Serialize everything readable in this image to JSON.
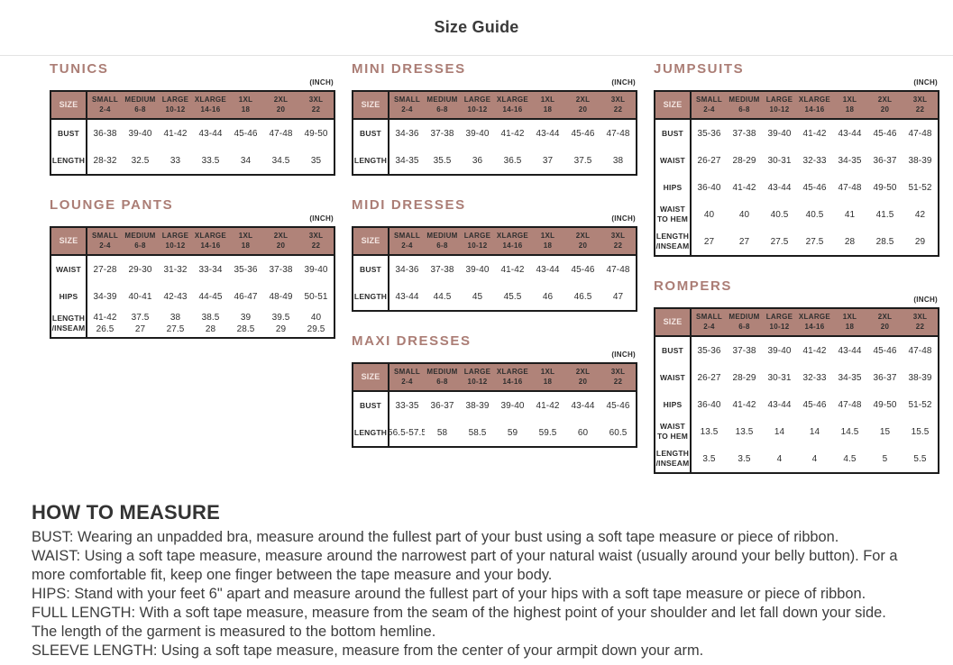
{
  "header": {
    "title": "Size Guide"
  },
  "size_label": "SIZE",
  "unit_label": "(INCH)",
  "colors": {
    "accent": "#ab7d75",
    "table_header_bg": "#b08379",
    "table_header_text": "#f4e6e2",
    "table_border": "#1c1c1c",
    "text": "#333333"
  },
  "size_columns": [
    {
      "name": "SMALL",
      "range": "2-4"
    },
    {
      "name": "MEDIUM",
      "range": "6-8"
    },
    {
      "name": "LARGE",
      "range": "10-12"
    },
    {
      "name": "XLARGE",
      "range": "14-16"
    },
    {
      "name": "1XL",
      "range": "18"
    },
    {
      "name": "2XL",
      "range": "20"
    },
    {
      "name": "3XL",
      "range": "22"
    }
  ],
  "columns": [
    {
      "tables": [
        {
          "title": "TUNICS",
          "rows": [
            {
              "label": "BUST",
              "values": [
                "36-38",
                "39-40",
                "41-42",
                "43-44",
                "45-46",
                "47-48",
                "49-50"
              ]
            },
            {
              "label": "LENGTH",
              "values": [
                "28-32",
                "32.5",
                "33",
                "33.5",
                "34",
                "34.5",
                "35"
              ]
            }
          ]
        },
        {
          "title": "LOUNGE PANTS",
          "rows": [
            {
              "label": "WAIST",
              "values": [
                "27-28",
                "29-30",
                "31-32",
                "33-34",
                "35-36",
                "37-38",
                "39-40"
              ]
            },
            {
              "label": "HIPS",
              "values": [
                "34-39",
                "40-41",
                "42-43",
                "44-45",
                "46-47",
                "48-49",
                "50-51"
              ]
            },
            {
              "label": "LENGTH\n/INSEAM",
              "values": [
                "41-42\n26.5",
                "37.5\n27",
                "38\n27.5",
                "38.5\n28",
                "39\n28.5",
                "39.5\n29",
                "40\n29.5"
              ]
            }
          ]
        }
      ]
    },
    {
      "tables": [
        {
          "title": "MINI DRESSES",
          "rows": [
            {
              "label": "BUST",
              "values": [
                "34-36",
                "37-38",
                "39-40",
                "41-42",
                "43-44",
                "45-46",
                "47-48"
              ]
            },
            {
              "label": "LENGTH",
              "values": [
                "34-35",
                "35.5",
                "36",
                "36.5",
                "37",
                "37.5",
                "38"
              ]
            }
          ]
        },
        {
          "title": "MIDI DRESSES",
          "rows": [
            {
              "label": "BUST",
              "values": [
                "34-36",
                "37-38",
                "39-40",
                "41-42",
                "43-44",
                "45-46",
                "47-48"
              ]
            },
            {
              "label": "LENGTH",
              "values": [
                "43-44",
                "44.5",
                "45",
                "45.5",
                "46",
                "46.5",
                "47"
              ]
            }
          ]
        },
        {
          "title": "MAXI DRESSES",
          "rows": [
            {
              "label": "BUST",
              "values": [
                "33-35",
                "36-37",
                "38-39",
                "39-40",
                "41-42",
                "43-44",
                "45-46"
              ]
            },
            {
              "label": "LENGTH",
              "values": [
                "56.5-57.5",
                "58",
                "58.5",
                "59",
                "59.5",
                "60",
                "60.5"
              ]
            }
          ]
        }
      ]
    },
    {
      "tables": [
        {
          "title": "JUMPSUITS",
          "rows": [
            {
              "label": "BUST",
              "values": [
                "35-36",
                "37-38",
                "39-40",
                "41-42",
                "43-44",
                "45-46",
                "47-48"
              ]
            },
            {
              "label": "WAIST",
              "values": [
                "26-27",
                "28-29",
                "30-31",
                "32-33",
                "34-35",
                "36-37",
                "38-39"
              ]
            },
            {
              "label": "HIPS",
              "values": [
                "36-40",
                "41-42",
                "43-44",
                "45-46",
                "47-48",
                "49-50",
                "51-52"
              ]
            },
            {
              "label": "WAIST\nTO HEM",
              "values": [
                "40",
                "40",
                "40.5",
                "40.5",
                "41",
                "41.5",
                "42"
              ]
            },
            {
              "label": "LENGTH\n/INSEAM",
              "values": [
                "27",
                "27",
                "27.5",
                "27.5",
                "28",
                "28.5",
                "29"
              ]
            }
          ]
        },
        {
          "title": "ROMPERS",
          "rows": [
            {
              "label": "BUST",
              "values": [
                "35-36",
                "37-38",
                "39-40",
                "41-42",
                "43-44",
                "45-46",
                "47-48"
              ]
            },
            {
              "label": "WAIST",
              "values": [
                "26-27",
                "28-29",
                "30-31",
                "32-33",
                "34-35",
                "36-37",
                "38-39"
              ]
            },
            {
              "label": "HIPS",
              "values": [
                "36-40",
                "41-42",
                "43-44",
                "45-46",
                "47-48",
                "49-50",
                "51-52"
              ]
            },
            {
              "label": "WAIST\nTO HEM",
              "values": [
                "13.5",
                "13.5",
                "14",
                "14",
                "14.5",
                "15",
                "15.5"
              ]
            },
            {
              "label": "LENGTH\n/INSEAM",
              "values": [
                "3.5",
                "3.5",
                "4",
                "4",
                "4.5",
                "5",
                "5.5"
              ]
            }
          ]
        }
      ]
    }
  ],
  "how_to_measure": {
    "heading": "HOW TO MEASURE",
    "lines": [
      "BUST: Wearing an unpadded bra, measure around the fullest part of your bust using a soft tape measure or piece of ribbon.",
      "WAIST: Using a soft tape measure, measure around the narrowest part of your natural waist (usually around your belly button). For a",
      "more comfortable fit, keep one finger between the tape measure and your body.",
      "HIPS: Stand with your feet 6\" apart and measure around the fullest part of your hips with a soft tape measure or piece of ribbon.",
      "FULL LENGTH: With a soft tape measure, measure from the seam of the highest point of your shoulder and let fall down your side.",
      "The length of the garment is measured to the bottom hemline.",
      "SLEEVE LENGTH: Using a soft tape measure, measure from the center of your armpit down your arm."
    ]
  }
}
